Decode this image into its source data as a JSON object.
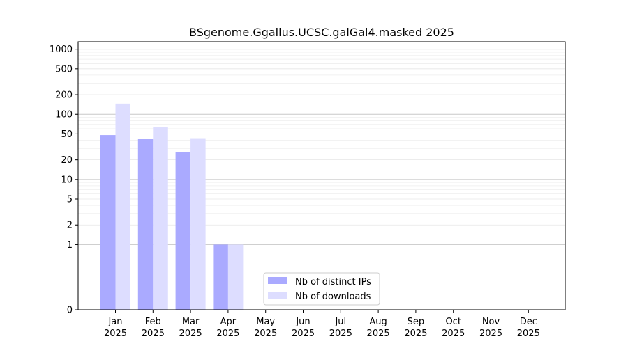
{
  "chart_data": {
    "type": "bar",
    "title": "BSgenome.Ggallus.UCSC.galGal4.masked 2025",
    "xlabel": "",
    "ylabel": "",
    "yscale": "symlog",
    "ylim": [
      0,
      1300
    ],
    "y_ticks": [
      0,
      1,
      2,
      5,
      10,
      20,
      50,
      100,
      200,
      500,
      1000
    ],
    "y_tick_labels": [
      "0",
      "1",
      "2",
      "5",
      "10",
      "20",
      "50",
      "100",
      "200",
      "500",
      "1000"
    ],
    "categories": [
      [
        "Jan",
        "2025"
      ],
      [
        "Feb",
        "2025"
      ],
      [
        "Mar",
        "2025"
      ],
      [
        "Apr",
        "2025"
      ],
      [
        "May",
        "2025"
      ],
      [
        "Jun",
        "2025"
      ],
      [
        "Jul",
        "2025"
      ],
      [
        "Aug",
        "2025"
      ],
      [
        "Sep",
        "2025"
      ],
      [
        "Oct",
        "2025"
      ],
      [
        "Nov",
        "2025"
      ],
      [
        "Dec",
        "2025"
      ]
    ],
    "series": [
      {
        "name": "Nb of distinct IPs",
        "color": "#aaaaff",
        "values": [
          48,
          42,
          26,
          1,
          0,
          0,
          0,
          0,
          0,
          0,
          0,
          0
        ]
      },
      {
        "name": "Nb of downloads",
        "color": "#ddddff",
        "values": [
          146,
          63,
          43,
          1,
          0,
          0,
          0,
          0,
          0,
          0,
          0,
          0
        ]
      }
    ],
    "grid": true,
    "legend_position": "lower-center"
  }
}
